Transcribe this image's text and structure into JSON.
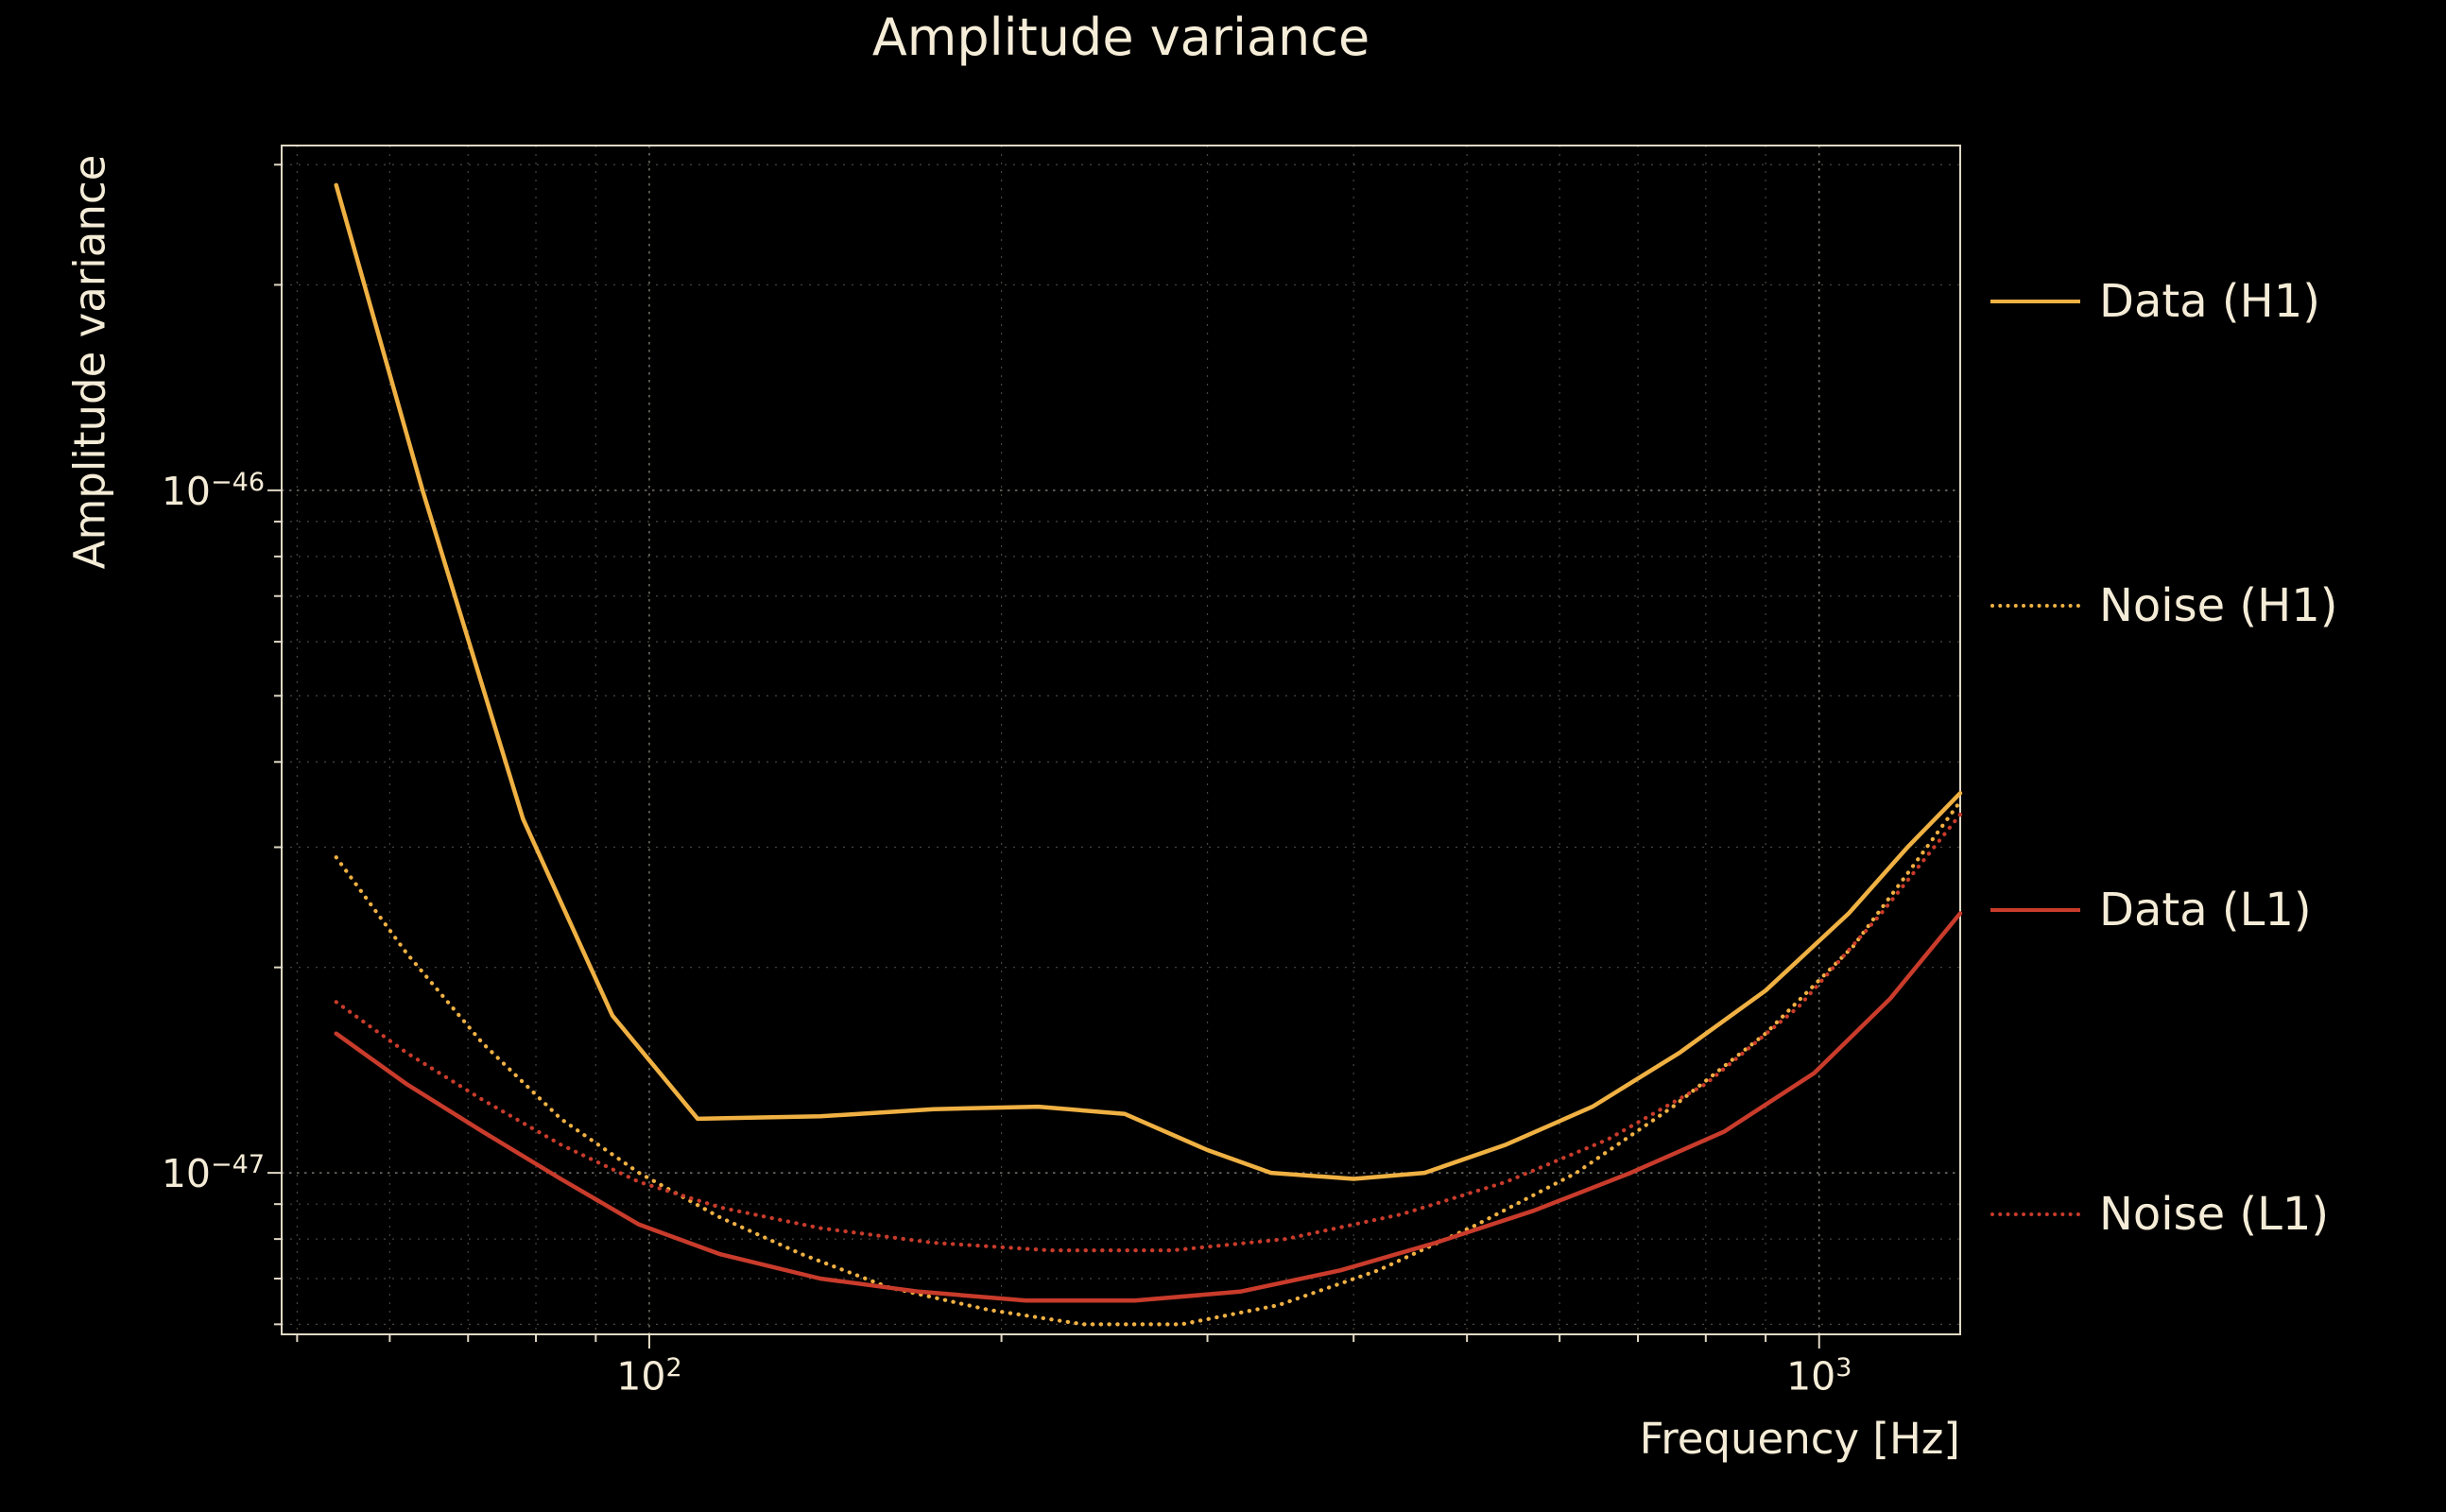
{
  "colors": {
    "background": "#000000",
    "text": "#f5ecd7",
    "grid": "#efe8d5",
    "gold": "#f0b143",
    "red": "#c93b2b"
  },
  "chart_data": {
    "type": "line",
    "title": "Amplitude variance",
    "xlabel": "Frequency [Hz]",
    "ylabel": "Amplitude variance",
    "xscale": "log",
    "yscale": "log",
    "xlim": [
      48.5,
      1320
    ],
    "ylim": [
      5.8e-48,
      3.2e-46
    ],
    "grid": true,
    "legend_position": "right-outside",
    "xticks": [
      {
        "value": 100,
        "base": "10",
        "exp": "2"
      },
      {
        "value": 1000,
        "base": "10",
        "exp": "3"
      }
    ],
    "yticks": [
      {
        "value": 1e-46,
        "base": "10",
        "exp": "−46"
      },
      {
        "value": 1e-47,
        "base": "10",
        "exp": "−47"
      }
    ],
    "grid_x": {
      "major": [
        100,
        1000
      ],
      "minor": [
        50,
        60,
        70,
        80,
        90,
        200,
        300,
        400,
        500,
        600,
        700,
        800,
        900
      ]
    },
    "grid_y": {
      "major": [
        1e-46,
        1e-47
      ],
      "minor": [
        6e-48,
        7e-48,
        8e-48,
        9e-48,
        2e-47,
        3e-47,
        4e-47,
        5e-47,
        6e-47,
        7e-47,
        8e-47,
        9e-47,
        2e-46,
        3e-46
      ]
    },
    "series": [
      {
        "name": "Data (H1)",
        "color": "#f0b143",
        "style": "solid",
        "x": [
          54,
          64,
          78,
          93,
          110,
          140,
          175,
          215,
          255,
          300,
          340,
          400,
          460,
          540,
          640,
          760,
          900,
          1060,
          1190,
          1320
        ],
        "y": [
          2.8e-46,
          1e-46,
          3.3e-47,
          1.7e-47,
          1.2e-47,
          1.21e-47,
          1.24e-47,
          1.25e-47,
          1.22e-47,
          1.08e-47,
          1e-47,
          9.8e-48,
          1e-47,
          1.1e-47,
          1.25e-47,
          1.5e-47,
          1.85e-47,
          2.4e-47,
          3e-47,
          3.6e-47
        ]
      },
      {
        "name": "Noise (H1)",
        "color": "#f0b143",
        "style": "dotted",
        "x": [
          54,
          62,
          72,
          84,
          98,
          115,
          135,
          160,
          195,
          235,
          285,
          345,
          420,
          510,
          620,
          750,
          900,
          1070,
          1200,
          1320
        ],
        "y": [
          2.9e-47,
          2.1e-47,
          1.55e-47,
          1.2e-47,
          1e-47,
          8.6e-48,
          7.6e-48,
          6.8e-48,
          6.3e-48,
          6e-48,
          6e-48,
          6.4e-48,
          7.2e-48,
          8.4e-48,
          1e-47,
          1.25e-47,
          1.6e-47,
          2.15e-47,
          2.8e-47,
          3.5e-47
        ]
      },
      {
        "name": "Data (L1)",
        "color": "#c93b2b",
        "style": "solid",
        "x": [
          54,
          62,
          72,
          84,
          98,
          115,
          140,
          170,
          210,
          260,
          320,
          390,
          470,
          570,
          690,
          830,
          990,
          1150,
          1320
        ],
        "y": [
          1.6e-47,
          1.35e-47,
          1.15e-47,
          9.8e-48,
          8.4e-48,
          7.6e-48,
          7e-48,
          6.7e-48,
          6.5e-48,
          6.5e-48,
          6.7e-48,
          7.2e-48,
          7.9e-48,
          8.8e-48,
          1e-47,
          1.15e-47,
          1.4e-47,
          1.8e-47,
          2.4e-47
        ]
      },
      {
        "name": "Noise (L1)",
        "color": "#c93b2b",
        "style": "dotted",
        "x": [
          54,
          62,
          72,
          84,
          98,
          115,
          140,
          175,
          220,
          280,
          350,
          440,
          540,
          660,
          800,
          960,
          1130,
          1320
        ],
        "y": [
          1.78e-47,
          1.5e-47,
          1.28e-47,
          1.1e-47,
          9.7e-48,
          8.9e-48,
          8.3e-48,
          7.9e-48,
          7.7e-48,
          7.7e-48,
          8e-48,
          8.7e-48,
          9.7e-48,
          1.12e-47,
          1.35e-47,
          1.75e-47,
          2.4e-47,
          3.35e-47
        ]
      }
    ]
  }
}
